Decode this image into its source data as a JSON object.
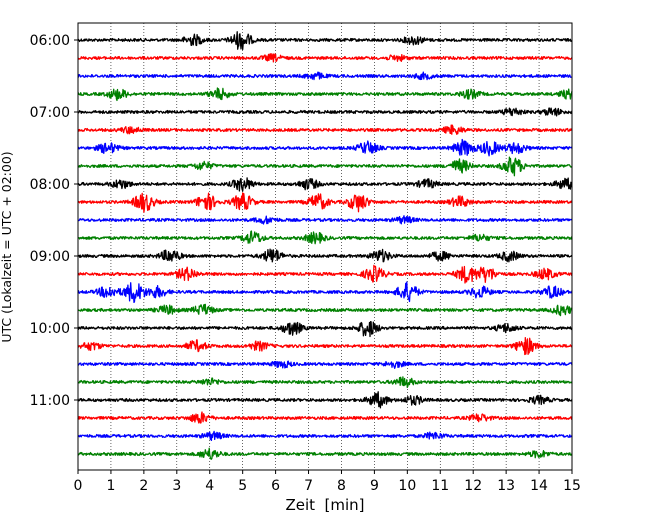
{
  "chart_data": {
    "type": "line",
    "title": "",
    "xlabel": "Zeit  [min]",
    "ylabel": "UTC (Lokalzeit = UTC + 02:00)",
    "xlim": [
      0,
      15
    ],
    "x_ticks": [
      "0",
      "1",
      "2",
      "3",
      "4",
      "5",
      "6",
      "7",
      "8",
      "9",
      "10",
      "11",
      "12",
      "13",
      "14",
      "15"
    ],
    "y_tick_labels": [
      "06:00",
      "07:00",
      "08:00",
      "09:00",
      "10:00",
      "11:00"
    ],
    "grid": "vertical dotted",
    "trace_interval_min": 15,
    "trace_colors": [
      "#000000",
      "#ff0000",
      "#0000ff",
      "#008000"
    ],
    "traces": [
      {
        "start": "06:00",
        "color": "#000000",
        "events": [
          [
            3.5,
            1.0
          ],
          [
            4.95,
            1.8
          ],
          [
            10.2,
            0.8
          ]
        ]
      },
      {
        "start": "06:15",
        "color": "#ff0000",
        "events": [
          [
            5.9,
            0.6
          ],
          [
            9.7,
            0.5
          ]
        ]
      },
      {
        "start": "06:30",
        "color": "#0000ff",
        "events": [
          [
            7.2,
            0.6
          ],
          [
            10.5,
            0.5
          ]
        ]
      },
      {
        "start": "06:45",
        "color": "#008000",
        "events": [
          [
            1.2,
            1.0
          ],
          [
            4.3,
            1.0
          ],
          [
            11.9,
            0.8
          ],
          [
            14.9,
            0.8
          ]
        ]
      },
      {
        "start": "07:00",
        "color": "#000000",
        "events": [
          [
            13.2,
            0.7
          ],
          [
            14.4,
            0.7
          ]
        ]
      },
      {
        "start": "07:15",
        "color": "#ff0000",
        "events": [
          [
            1.6,
            0.6
          ],
          [
            11.4,
            0.8
          ]
        ]
      },
      {
        "start": "07:30",
        "color": "#0000ff",
        "events": [
          [
            0.9,
            1.0
          ],
          [
            8.8,
            1.2
          ],
          [
            11.7,
            1.5
          ],
          [
            12.5,
            1.3
          ],
          [
            13.3,
            1.0
          ]
        ]
      },
      {
        "start": "07:45",
        "color": "#008000",
        "events": [
          [
            3.8,
            0.7
          ],
          [
            11.6,
            1.2
          ],
          [
            13.2,
            1.8
          ]
        ]
      },
      {
        "start": "08:00",
        "color": "#000000",
        "events": [
          [
            1.3,
            0.8
          ],
          [
            5.0,
            1.3
          ],
          [
            7.0,
            1.0
          ],
          [
            10.6,
            0.8
          ],
          [
            14.8,
            1.0
          ]
        ]
      },
      {
        "start": "08:15",
        "color": "#ff0000",
        "events": [
          [
            2.0,
            1.8
          ],
          [
            3.9,
            1.6
          ],
          [
            5.0,
            1.6
          ],
          [
            7.3,
            1.5
          ],
          [
            8.5,
            1.7
          ],
          [
            11.6,
            1.0
          ]
        ]
      },
      {
        "start": "08:30",
        "color": "#0000ff",
        "events": [
          [
            5.7,
            0.6
          ],
          [
            9.9,
            0.6
          ]
        ]
      },
      {
        "start": "08:45",
        "color": "#008000",
        "events": [
          [
            5.3,
            1.2
          ],
          [
            7.2,
            1.0
          ],
          [
            12.2,
            0.6
          ]
        ]
      },
      {
        "start": "09:00",
        "color": "#000000",
        "events": [
          [
            2.8,
            1.2
          ],
          [
            5.9,
            1.3
          ],
          [
            9.2,
            1.1
          ],
          [
            11.0,
            0.8
          ],
          [
            13.1,
            0.9
          ]
        ]
      },
      {
        "start": "09:15",
        "color": "#ff0000",
        "events": [
          [
            3.3,
            1.2
          ],
          [
            9.0,
            1.5
          ],
          [
            11.8,
            1.6
          ],
          [
            12.4,
            1.4
          ],
          [
            14.2,
            1.0
          ]
        ]
      },
      {
        "start": "09:30",
        "color": "#0000ff",
        "events": [
          [
            0.9,
            1.1
          ],
          [
            1.7,
            2.0
          ],
          [
            2.4,
            1.0
          ],
          [
            10.0,
            1.8
          ],
          [
            12.2,
            1.1
          ],
          [
            14.4,
            1.1
          ]
        ]
      },
      {
        "start": "09:45",
        "color": "#008000",
        "events": [
          [
            2.7,
            0.8
          ],
          [
            3.8,
            1.0
          ],
          [
            14.7,
            0.9
          ]
        ]
      },
      {
        "start": "10:00",
        "color": "#000000",
        "events": [
          [
            6.5,
            1.3
          ],
          [
            8.8,
            1.6
          ],
          [
            13.0,
            0.8
          ]
        ]
      },
      {
        "start": "10:15",
        "color": "#ff0000",
        "events": [
          [
            0.4,
            0.7
          ],
          [
            3.6,
            1.0
          ],
          [
            5.5,
            0.8
          ],
          [
            13.6,
            1.6
          ]
        ]
      },
      {
        "start": "10:30",
        "color": "#0000ff",
        "events": [
          [
            6.2,
            0.6
          ],
          [
            9.6,
            0.6
          ]
        ]
      },
      {
        "start": "10:45",
        "color": "#008000",
        "events": [
          [
            4.0,
            0.6
          ],
          [
            9.9,
            0.9
          ]
        ]
      },
      {
        "start": "11:00",
        "color": "#000000",
        "events": [
          [
            9.1,
            1.4
          ],
          [
            10.2,
            0.8
          ],
          [
            14.0,
            0.7
          ]
        ]
      },
      {
        "start": "11:15",
        "color": "#ff0000",
        "events": [
          [
            3.7,
            1.0
          ],
          [
            12.2,
            0.7
          ]
        ]
      },
      {
        "start": "11:30",
        "color": "#0000ff",
        "events": [
          [
            4.1,
            0.7
          ],
          [
            10.8,
            0.6
          ]
        ]
      },
      {
        "start": "11:45",
        "color": "#008000",
        "events": [
          [
            4.0,
            1.0
          ],
          [
            14.0,
            0.6
          ]
        ]
      }
    ]
  }
}
